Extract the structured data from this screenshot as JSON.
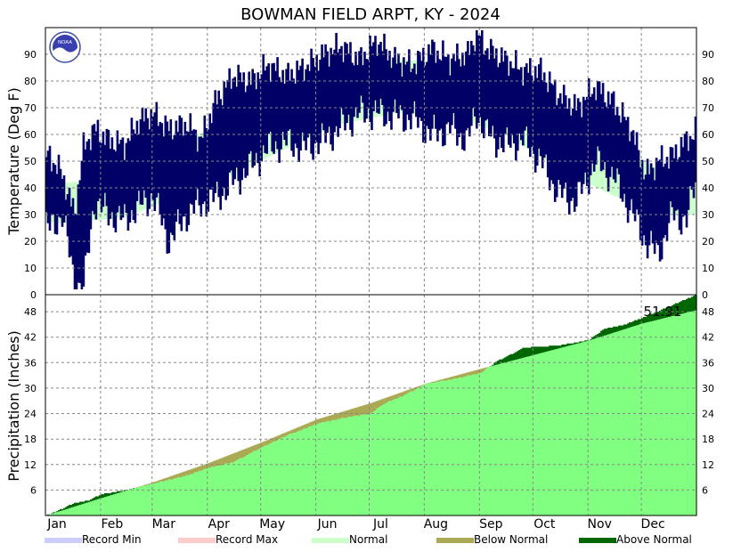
{
  "chart_data": [
    {
      "type": "line",
      "title": "BOWMAN FIELD ARPT, KY - 2024",
      "ylabel": "Temperature (Deg F)",
      "ylim": [
        0,
        100
      ],
      "yticks": [
        "0",
        "10",
        "20",
        "30",
        "40",
        "50",
        "60",
        "70",
        "80",
        "90"
      ],
      "months": [
        "Jan",
        "Feb",
        "Mar",
        "Apr",
        "May",
        "Jun",
        "Jul",
        "Aug",
        "Sep",
        "Oct",
        "Nov",
        "Dec"
      ],
      "grid": true,
      "colors": {
        "daily_range": "#000066",
        "normal_band": "#ccffcc"
      },
      "monthly_normal": {
        "month": [
          "Jan",
          "Feb",
          "Mar",
          "Apr",
          "May",
          "Jun",
          "Jul",
          "Aug",
          "Sep",
          "Oct",
          "Nov",
          "Dec"
        ],
        "normal_low": [
          27,
          29,
          37,
          45,
          55,
          64,
          68,
          67,
          60,
          47,
          37,
          30
        ],
        "normal_high": [
          42,
          46,
          56,
          67,
          76,
          84,
          88,
          87,
          81,
          69,
          56,
          45
        ]
      },
      "daily_range_samples": {
        "date": [
          "Jan 3",
          "Jan 10",
          "Jan 17",
          "Jan 22",
          "Jan 28",
          "Feb 5",
          "Feb 14",
          "Feb 22",
          "Mar 1",
          "Mar 10",
          "Mar 20",
          "Mar 28",
          "Apr 5",
          "Apr 15",
          "Apr 25",
          "May 5",
          "May 15",
          "May 25",
          "Jun 5",
          "Jun 15",
          "Jun 25",
          "Jul 5",
          "Jul 15",
          "Jul 25",
          "Aug 5",
          "Aug 15",
          "Aug 25",
          "Aug 30",
          "Sep 5",
          "Sep 15",
          "Sep 25",
          "Oct 5",
          "Oct 15",
          "Oct 25",
          "Nov 5",
          "Nov 15",
          "Nov 25",
          "Dec 3",
          "Dec 10",
          "Dec 18",
          "Dec 26",
          "Dec 31"
        ],
        "low": [
          25,
          30,
          5,
          2,
          35,
          30,
          28,
          33,
          37,
          20,
          30,
          34,
          36,
          42,
          48,
          55,
          57,
          55,
          58,
          63,
          68,
          68,
          67,
          66,
          60,
          62,
          58,
          68,
          60,
          56,
          58,
          50,
          38,
          35,
          50,
          44,
          31,
          20,
          15,
          30,
          28,
          42
        ],
        "high": [
          52,
          45,
          30,
          55,
          62,
          58,
          56,
          65,
          68,
          62,
          64,
          58,
          72,
          82,
          80,
          86,
          82,
          85,
          90,
          93,
          88,
          95,
          88,
          86,
          92,
          88,
          90,
          98,
          92,
          88,
          84,
          84,
          75,
          70,
          78,
          72,
          62,
          45,
          50,
          52,
          58,
          61
        ]
      }
    },
    {
      "type": "area",
      "ylabel": "Precipitation (Inches)",
      "ylim": [
        0,
        52
      ],
      "yticks": [
        "6",
        "12",
        "18",
        "24",
        "30",
        "36",
        "42",
        "48"
      ],
      "months": [
        "Jan",
        "Feb",
        "Mar",
        "Apr",
        "May",
        "Jun",
        "Jul",
        "Aug",
        "Sep",
        "Oct",
        "Nov",
        "Dec"
      ],
      "grid": true,
      "annotation": "51.91",
      "colors": {
        "normal": "#80ff80",
        "above": "#006600",
        "below": "#aaaa55"
      },
      "cumulative_normal": {
        "date": [
          "Jan 1",
          "Feb 1",
          "Mar 1",
          "Apr 1",
          "May 1",
          "Jun 1",
          "Jul 1",
          "Aug 1",
          "Sep 1",
          "Oct 1",
          "Nov 1",
          "Dec 1",
          "Dec 31"
        ],
        "value": [
          0,
          4.1,
          7.8,
          12.3,
          17.2,
          22.6,
          26.4,
          31.0,
          34.5,
          37.8,
          41.2,
          45.2,
          48.3
        ]
      },
      "cumulative_observed": {
        "date": [
          "Jan 1",
          "Jan 8",
          "Jan 16",
          "Jan 25",
          "Feb 1",
          "Feb 15",
          "Mar 1",
          "Mar 20",
          "Apr 1",
          "Apr 15",
          "May 1",
          "May 15",
          "Jun 1",
          "Jun 15",
          "Jul 1",
          "Jul 10",
          "Jul 20",
          "Aug 1",
          "Aug 15",
          "Sep 1",
          "Sep 10",
          "Sep 25",
          "Oct 1",
          "Oct 15",
          "Nov 1",
          "Nov 10",
          "Nov 20",
          "Dec 1",
          "Dec 15",
          "Dec 31"
        ],
        "value": [
          0,
          1.2,
          2.8,
          3.6,
          5.0,
          6.0,
          7.5,
          9.4,
          11.2,
          12.5,
          16.0,
          18.8,
          21.6,
          22.9,
          24.0,
          26.6,
          28.2,
          31.0,
          32.0,
          33.5,
          36.2,
          39.4,
          39.7,
          40.0,
          41.3,
          44.0,
          44.8,
          46.5,
          49.0,
          51.91
        ]
      }
    }
  ],
  "legend": [
    {
      "label": "Record Min",
      "color": "#ccccff"
    },
    {
      "label": "Record Max",
      "color": "#ffcccc"
    },
    {
      "label": "Normal",
      "color": "#ccffcc"
    },
    {
      "label": "Below Normal",
      "color": "#aaaa55"
    },
    {
      "label": "Above Normal",
      "color": "#006600"
    }
  ],
  "logo": {
    "icon": "noaa-logo-icon",
    "text": "NOAA"
  }
}
